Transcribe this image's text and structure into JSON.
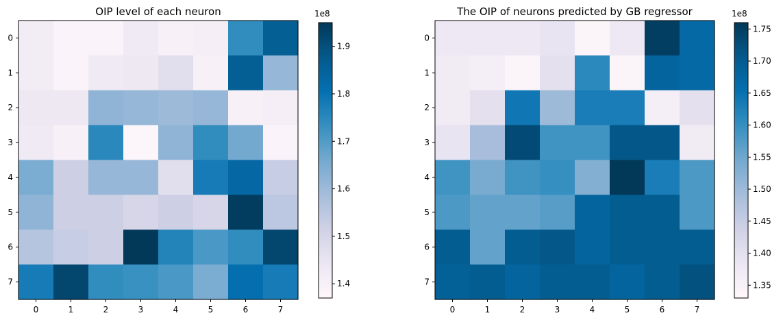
{
  "chart_data": [
    {
      "type": "heatmap",
      "title": "OIP level of each neuron",
      "xticks": [
        "0",
        "1",
        "2",
        "3",
        "4",
        "5",
        "6",
        "7"
      ],
      "yticks": [
        "0",
        "1",
        "2",
        "3",
        "4",
        "5",
        "6",
        "7"
      ],
      "colormap": "PuBu",
      "color_range": [
        137000000,
        195000000
      ],
      "colorbar_ticks": [
        "1.4",
        "1.5",
        "1.6",
        "1.7",
        "1.8",
        "1.9"
      ],
      "colorbar_tick_values": [
        1.4,
        1.5,
        1.6,
        1.7,
        1.8,
        1.9
      ],
      "colorbar_scale_value": 100000000.0,
      "colorbar_multiplier": "1e8",
      "values": [
        [
          1.42,
          1.39,
          1.39,
          1.43,
          1.4,
          1.41,
          1.74,
          1.86
        ],
        [
          1.42,
          1.39,
          1.43,
          1.44,
          1.47,
          1.4,
          1.86,
          1.61
        ],
        [
          1.44,
          1.44,
          1.62,
          1.61,
          1.6,
          1.61,
          1.4,
          1.41
        ],
        [
          1.43,
          1.4,
          1.75,
          1.38,
          1.62,
          1.74,
          1.66,
          1.39
        ],
        [
          1.65,
          1.52,
          1.61,
          1.61,
          1.47,
          1.78,
          1.83,
          1.53
        ],
        [
          1.62,
          1.52,
          1.52,
          1.5,
          1.52,
          1.5,
          1.94,
          1.55
        ],
        [
          1.56,
          1.53,
          1.52,
          1.95,
          1.76,
          1.71,
          1.74,
          1.92
        ],
        [
          1.78,
          1.92,
          1.74,
          1.73,
          1.71,
          1.65,
          1.81,
          1.78
        ]
      ]
    },
    {
      "type": "heatmap",
      "title": "The OIP of neurons predicted by GB regressor",
      "xticks": [
        "0",
        "1",
        "2",
        "3",
        "4",
        "5",
        "6",
        "7"
      ],
      "yticks": [
        "0",
        "1",
        "2",
        "3",
        "4",
        "5",
        "6",
        "7"
      ],
      "colormap": "PuBu",
      "color_range": [
        133000000,
        176000000
      ],
      "colorbar_ticks": [
        "1.35",
        "1.40",
        "1.45",
        "1.50",
        "1.55",
        "1.60",
        "1.65",
        "1.70",
        "1.75"
      ],
      "colorbar_tick_values": [
        1.35,
        1.4,
        1.45,
        1.5,
        1.55,
        1.6,
        1.65,
        1.7,
        1.75
      ],
      "colorbar_scale_value": 100000000.0,
      "colorbar_multiplier": "1e8",
      "values": [
        [
          1.38,
          1.38,
          1.38,
          1.39,
          1.34,
          1.38,
          1.75,
          1.67
        ],
        [
          1.37,
          1.36,
          1.34,
          1.4,
          1.61,
          1.34,
          1.68,
          1.67
        ],
        [
          1.37,
          1.4,
          1.64,
          1.5,
          1.63,
          1.63,
          1.36,
          1.4
        ],
        [
          1.39,
          1.49,
          1.73,
          1.59,
          1.59,
          1.71,
          1.71,
          1.37
        ],
        [
          1.59,
          1.54,
          1.59,
          1.6,
          1.53,
          1.76,
          1.63,
          1.58
        ],
        [
          1.58,
          1.56,
          1.56,
          1.57,
          1.68,
          1.7,
          1.7,
          1.58
        ],
        [
          1.7,
          1.56,
          1.7,
          1.71,
          1.68,
          1.7,
          1.7,
          1.7
        ],
        [
          1.69,
          1.7,
          1.68,
          1.7,
          1.7,
          1.68,
          1.7,
          1.72
        ]
      ]
    }
  ]
}
